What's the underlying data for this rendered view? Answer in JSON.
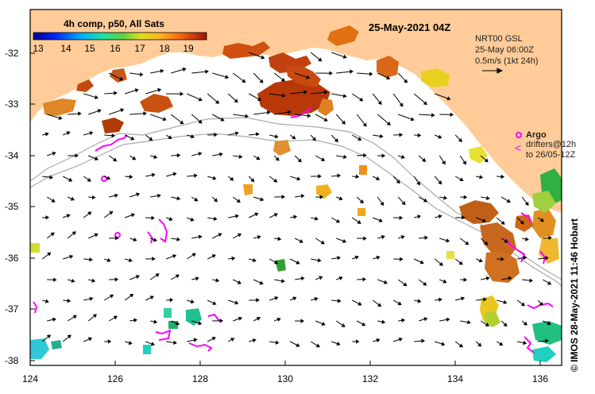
{
  "title": "25-May-2021 04Z",
  "colorbar": {
    "label": "4h comp, p50, All Sats",
    "ticks": [
      "13",
      "14",
      "15",
      "16",
      "17",
      "18",
      "19"
    ]
  },
  "vector_info": {
    "product": "NRT00 GSL",
    "time": "25-May 06:00Z",
    "scale": "0.5m/s (1kt 24h)"
  },
  "argo": {
    "label": "Argo",
    "drifters": "drifters@12h",
    "drifters_to": "to 26/05-12Z"
  },
  "credit": "© IMOS 28-May-2021 11:46 Hobart",
  "axes": {
    "x_ticks": [
      "124",
      "126",
      "128",
      "130",
      "132",
      "134",
      "136"
    ],
    "y_ticks": [
      "-32",
      "-33",
      "-34",
      "-35",
      "-36",
      "-37",
      "-38"
    ],
    "x_range": [
      124,
      136.5
    ],
    "y_range": [
      -38.1,
      -31.2
    ]
  },
  "colors": {
    "land": "#ffcc99",
    "ocean": "#ffffff",
    "argo": "#ff00ff",
    "bathy": "#aaaaaa"
  }
}
